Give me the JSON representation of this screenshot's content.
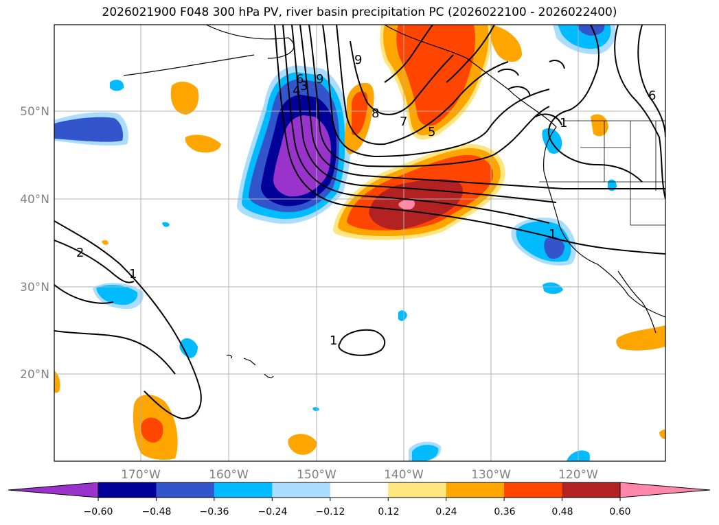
{
  "title": "2026021900 F048 300 hPa PV, river basin precipitation PC (2026022100 - 2026022400)",
  "lat_labels": [
    "50°N",
    "40°N",
    "30°N",
    "20°N"
  ],
  "lon_labels": [
    "170°W",
    "160°W",
    "150°W",
    "140°W",
    "130°W",
    "120°W"
  ],
  "contour_labels": [
    "9",
    "6",
    "4",
    "3",
    "8",
    "7",
    "5",
    "9",
    "6",
    "1",
    "2",
    "1",
    "1",
    "1"
  ],
  "colorbar": {
    "ticks": [
      "−0.60",
      "−0.48",
      "−0.36",
      "−0.24",
      "−0.12",
      "0.12",
      "0.24",
      "0.36",
      "0.48",
      "0.60"
    ],
    "colors": [
      "#9933cc",
      "#000099",
      "#3355cc",
      "#00bbff",
      "#aaddff",
      "#ffffff",
      "#ffe680",
      "#ffa500",
      "#ff4500",
      "#b22222",
      "#ff88aa"
    ]
  },
  "palette": {
    "purple": "#9933cc",
    "navy": "#000099",
    "royal": "#3355cc",
    "cyan": "#00bbff",
    "lightblue": "#aaddff",
    "yellow": "#ffe680",
    "orange": "#ffa500",
    "redorange": "#ff4500",
    "firebrick": "#b22222",
    "pink": "#ff88aa"
  }
}
